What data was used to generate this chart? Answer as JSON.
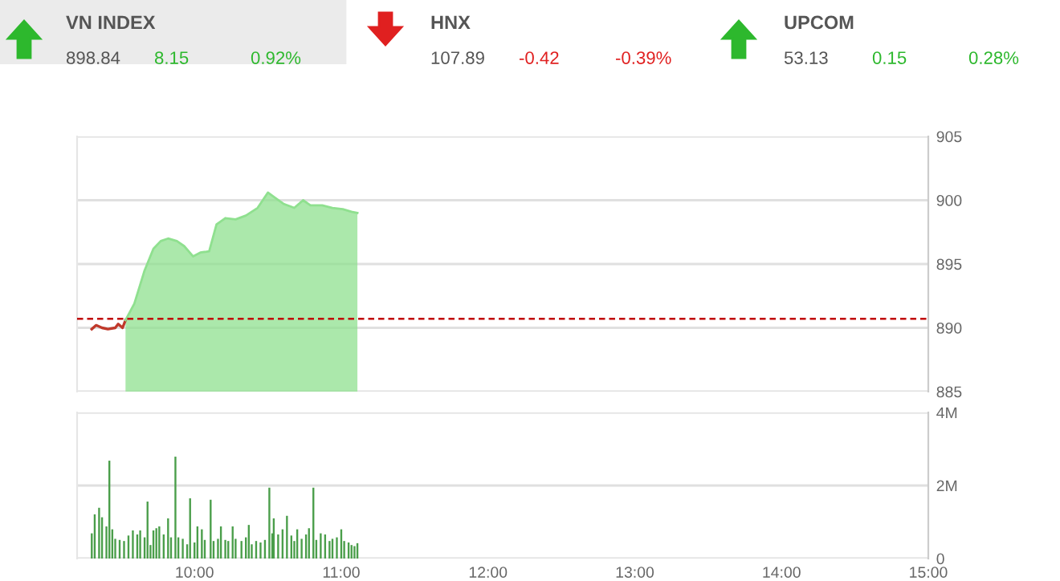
{
  "chart_data": [
    {
      "type": "other",
      "title": "VN INDEX",
      "annotations": [
        "898.84",
        "8.15",
        "0.92%"
      ],
      "colors": [
        "#555555",
        "#2db82d",
        "#2db82d"
      ]
    },
    {
      "type": "other",
      "title": "HNX",
      "annotations": [
        "107.89",
        "-0.42",
        "-0.39%"
      ],
      "colors": [
        "#555555",
        "#e02020",
        "#e02020"
      ]
    },
    {
      "type": "other",
      "title": "UPCOM",
      "annotations": [
        "53.13",
        "0.15",
        "0.28%"
      ],
      "colors": [
        "#555555",
        "#2db82d",
        "#2db82d"
      ]
    },
    {
      "type": "line",
      "xlim": [
        9.2,
        15.0
      ],
      "ylim": [
        885,
        905
      ],
      "yticks": [
        885,
        890,
        895,
        900,
        905
      ],
      "tick_labels": "y",
      "grid": "y",
      "ref_lines": [
        {
          "axis": "y",
          "value": 890.7,
          "color": "#c00000",
          "line_style": "dashed"
        }
      ],
      "series": [
        {
          "type": "line",
          "color": "#c0392b",
          "x": [
            9.3,
            9.33,
            9.37,
            9.41,
            9.46,
            9.48,
            9.51,
            9.53
          ],
          "values": [
            889.9,
            890.2,
            890.0,
            889.9,
            890.0,
            890.3,
            890.0,
            890.6
          ]
        },
        {
          "type": "area",
          "color": "#8fe08f",
          "x": [
            9.53,
            9.59,
            9.66,
            9.72,
            9.77,
            9.82,
            9.88,
            9.93,
            9.99,
            10.04,
            10.1,
            10.15,
            10.21,
            10.28,
            10.35,
            10.43,
            10.5,
            10.56,
            10.61,
            10.68,
            10.74,
            10.79,
            10.87,
            10.94,
            11.01,
            11.07,
            11.11
          ],
          "values": [
            890.6,
            891.9,
            894.5,
            896.2,
            896.8,
            897.0,
            896.8,
            896.4,
            895.6,
            895.9,
            896.0,
            898.1,
            898.6,
            898.5,
            898.8,
            899.4,
            900.6,
            900.1,
            899.7,
            899.4,
            900.0,
            899.6,
            899.6,
            899.4,
            899.3,
            899.1,
            899.0
          ]
        }
      ]
    },
    {
      "type": "bar",
      "xlim": [
        9.2,
        15.0
      ],
      "ylim": [
        0,
        4
      ],
      "yticks": [
        0,
        {
          "value": 2,
          "label": "2M"
        },
        {
          "value": 4,
          "label": "4M"
        }
      ],
      "xticks": [
        {
          "value": 10,
          "label": "10:00"
        },
        {
          "value": 11,
          "label": "11:00"
        },
        {
          "value": 12,
          "label": "12:00"
        },
        {
          "value": 13,
          "label": "13:00"
        },
        {
          "value": 14,
          "label": "14:00"
        },
        {
          "value": 15,
          "label": "15:00"
        }
      ],
      "grid": "y",
      "color": "#4a9e4a",
      "x": [
        9.3,
        9.32,
        9.35,
        9.37,
        9.4,
        9.42,
        9.44,
        9.46,
        9.49,
        9.52,
        9.55,
        9.58,
        9.61,
        9.63,
        9.66,
        9.68,
        9.7,
        9.72,
        9.74,
        9.76,
        9.79,
        9.82,
        9.84,
        9.87,
        9.89,
        9.92,
        9.95,
        9.97,
        10.0,
        10.02,
        10.05,
        10.07,
        10.11,
        10.13,
        10.16,
        10.18,
        10.21,
        10.23,
        10.26,
        10.28,
        10.32,
        10.35,
        10.37,
        10.39,
        10.42,
        10.45,
        10.48,
        10.51,
        10.53,
        10.54,
        10.57,
        10.6,
        10.63,
        10.66,
        10.68,
        10.7,
        10.73,
        10.76,
        10.78,
        10.81,
        10.83,
        10.86,
        10.89,
        10.92,
        10.94,
        10.97,
        11.0,
        11.02,
        11.05,
        11.07,
        11.09,
        11.11
      ],
      "values": [
        0.69,
        1.21,
        1.39,
        1.13,
        0.88,
        2.68,
        0.8,
        0.54,
        0.51,
        0.48,
        0.63,
        0.77,
        0.66,
        0.77,
        0.58,
        1.56,
        0.37,
        0.77,
        0.83,
        0.88,
        0.66,
        1.1,
        0.58,
        2.79,
        0.58,
        0.54,
        0.39,
        1.65,
        0.44,
        0.88,
        0.8,
        0.51,
        1.61,
        0.48,
        0.54,
        0.88,
        0.51,
        0.48,
        0.88,
        0.54,
        0.48,
        0.58,
        0.92,
        0.39,
        0.48,
        0.44,
        0.51,
        1.94,
        0.69,
        1.1,
        0.66,
        0.8,
        1.17,
        0.63,
        0.48,
        0.8,
        0.54,
        0.66,
        0.83,
        1.94,
        0.51,
        0.69,
        0.66,
        0.48,
        0.54,
        0.58,
        0.8,
        0.48,
        0.44,
        0.37,
        0.34,
        0.42
      ]
    }
  ]
}
